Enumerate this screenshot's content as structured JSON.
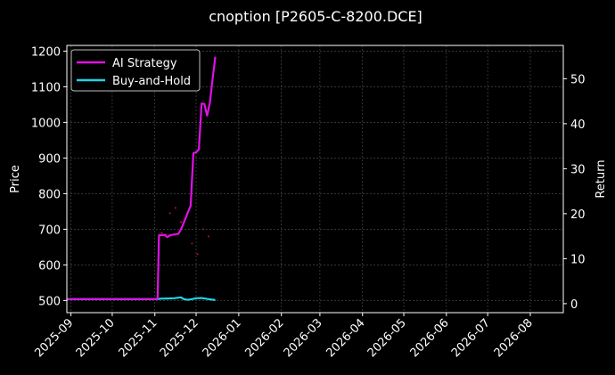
{
  "chart_data": {
    "type": "line",
    "title": "cnoption [P2605-C-8200.DCE]",
    "ylabel_left": "Price",
    "ylabel_right": "Return",
    "x_ticks": [
      "2025-09",
      "2025-10",
      "2025-11",
      "2025-12",
      "2026-01",
      "2026-02",
      "2026-03",
      "2026-04",
      "2026-05",
      "2026-06",
      "2026-07",
      "2026-08"
    ],
    "x_range": [
      "2025-08-29",
      "2026-08-25"
    ],
    "y_left_ticks": [
      500,
      600,
      700,
      800,
      900,
      1000,
      1100,
      1200
    ],
    "y_left_range": [
      466,
      1216
    ],
    "y_right_ticks": [
      0,
      10,
      20,
      30,
      40,
      50
    ],
    "y_right_range": [
      -2,
      57.4
    ],
    "grid": true,
    "legend_position": "top-left",
    "colors": {
      "background": "#000000",
      "ai_strategy": "#e010e6",
      "buy_and_hold": "#22d3e6",
      "trade_markers": "#c0102a",
      "grid": "#555555"
    },
    "series": [
      {
        "name": "AI Strategy",
        "axis": "right",
        "x": [
          "2025-08-29",
          "2025-09-15",
          "2025-10-01",
          "2025-10-15",
          "2025-11-01",
          "2025-11-03",
          "2025-11-04",
          "2025-11-08",
          "2025-11-10",
          "2025-11-12",
          "2025-11-14",
          "2025-11-18",
          "2025-11-20",
          "2025-11-27",
          "2025-11-29",
          "2025-12-01",
          "2025-12-03",
          "2025-12-05",
          "2025-12-07",
          "2025-12-09",
          "2025-12-11",
          "2025-12-13",
          "2025-12-15"
        ],
        "values": [
          1,
          1,
          1,
          1,
          1,
          1,
          15.2,
          15.3,
          14.8,
          15.2,
          15.3,
          15.5,
          16.5,
          21.8,
          33.5,
          33.6,
          34.3,
          44.5,
          44.4,
          41.8,
          44.7,
          50.1,
          54.9
        ]
      },
      {
        "name": "Buy-and-Hold",
        "axis": "right",
        "x": [
          "2025-08-29",
          "2025-09-15",
          "2025-10-01",
          "2025-10-20",
          "2025-11-03",
          "2025-11-05",
          "2025-11-10",
          "2025-11-15",
          "2025-11-20",
          "2025-11-22",
          "2025-11-25",
          "2025-11-28",
          "2025-12-01",
          "2025-12-05",
          "2025-12-10",
          "2025-12-15"
        ],
        "values": [
          1,
          1,
          1,
          1,
          1,
          1.1,
          1.15,
          1.2,
          1.4,
          1.0,
          0.85,
          1.0,
          1.2,
          1.25,
          1.0,
          0.8
        ]
      }
    ],
    "trade_markers": {
      "axis": "left",
      "x": [
        "2025-11-06",
        "2025-11-09",
        "2025-11-12",
        "2025-11-16",
        "2025-11-20",
        "2025-11-24",
        "2025-11-28",
        "2025-12-02",
        "2025-12-06",
        "2025-12-10"
      ],
      "values": [
        690,
        685,
        745,
        760,
        720,
        735,
        660,
        630,
        700,
        680
      ]
    }
  }
}
